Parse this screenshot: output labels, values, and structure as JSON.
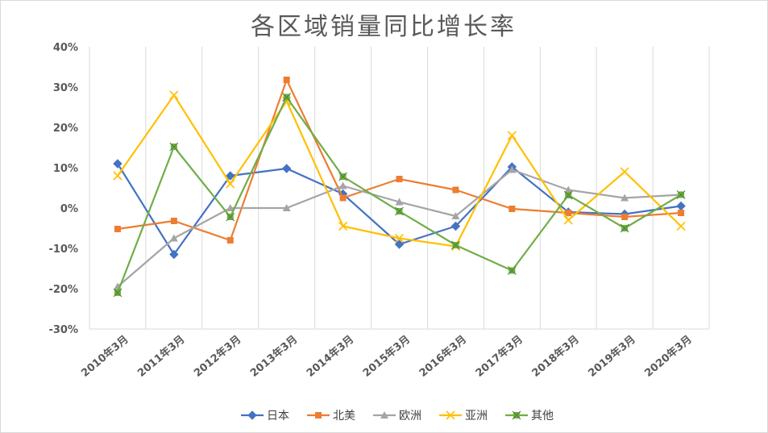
{
  "chart_data": {
    "type": "line",
    "title": "各区域销量同比增长率",
    "xlabel": "",
    "ylabel": "",
    "categories": [
      "2010年3月",
      "2011年3月",
      "2012年3月",
      "2013年3月",
      "2014年3月",
      "2015年3月",
      "2016年3月",
      "2017年3月",
      "2018年3月",
      "2019年3月",
      "2020年3月"
    ],
    "y_ticks": [
      "40%",
      "30%",
      "20%",
      "10%",
      "0%",
      "-10%",
      "-20%",
      "-30%"
    ],
    "ylim": [
      -30,
      40
    ],
    "grid": "vertical",
    "legend_position": "bottom",
    "series": [
      {
        "name": "日本",
        "color": "#4472c4",
        "marker": "diamond",
        "values": [
          11,
          -11.5,
          8,
          9.8,
          3.5,
          -9,
          -4.5,
          10.2,
          -1,
          -1.5,
          0.5
        ]
      },
      {
        "name": "北美",
        "color": "#ed7d31",
        "marker": "square",
        "values": [
          -5.2,
          -3.2,
          -8,
          31.8,
          2.5,
          7.2,
          4.5,
          -0.2,
          -1.2,
          -2.2,
          -1.2
        ]
      },
      {
        "name": "欧洲",
        "color": "#a5a5a5",
        "marker": "triangle",
        "values": [
          -19.5,
          -7.5,
          0,
          0,
          5.5,
          1.5,
          -2,
          9.5,
          4.5,
          2.5,
          3.3
        ]
      },
      {
        "name": "亚洲",
        "color": "#ffc000",
        "marker": "x",
        "values": [
          8,
          28,
          6,
          26.5,
          -4.5,
          -7.5,
          -9.5,
          18,
          -3,
          9,
          -4.5
        ]
      },
      {
        "name": "其他",
        "color": "#70ad47",
        "marker": "star",
        "values": [
          -21,
          15.2,
          -2.2,
          27.5,
          7.8,
          -0.8,
          -9.2,
          -15.5,
          3.2,
          -5,
          3.3
        ]
      }
    ]
  }
}
